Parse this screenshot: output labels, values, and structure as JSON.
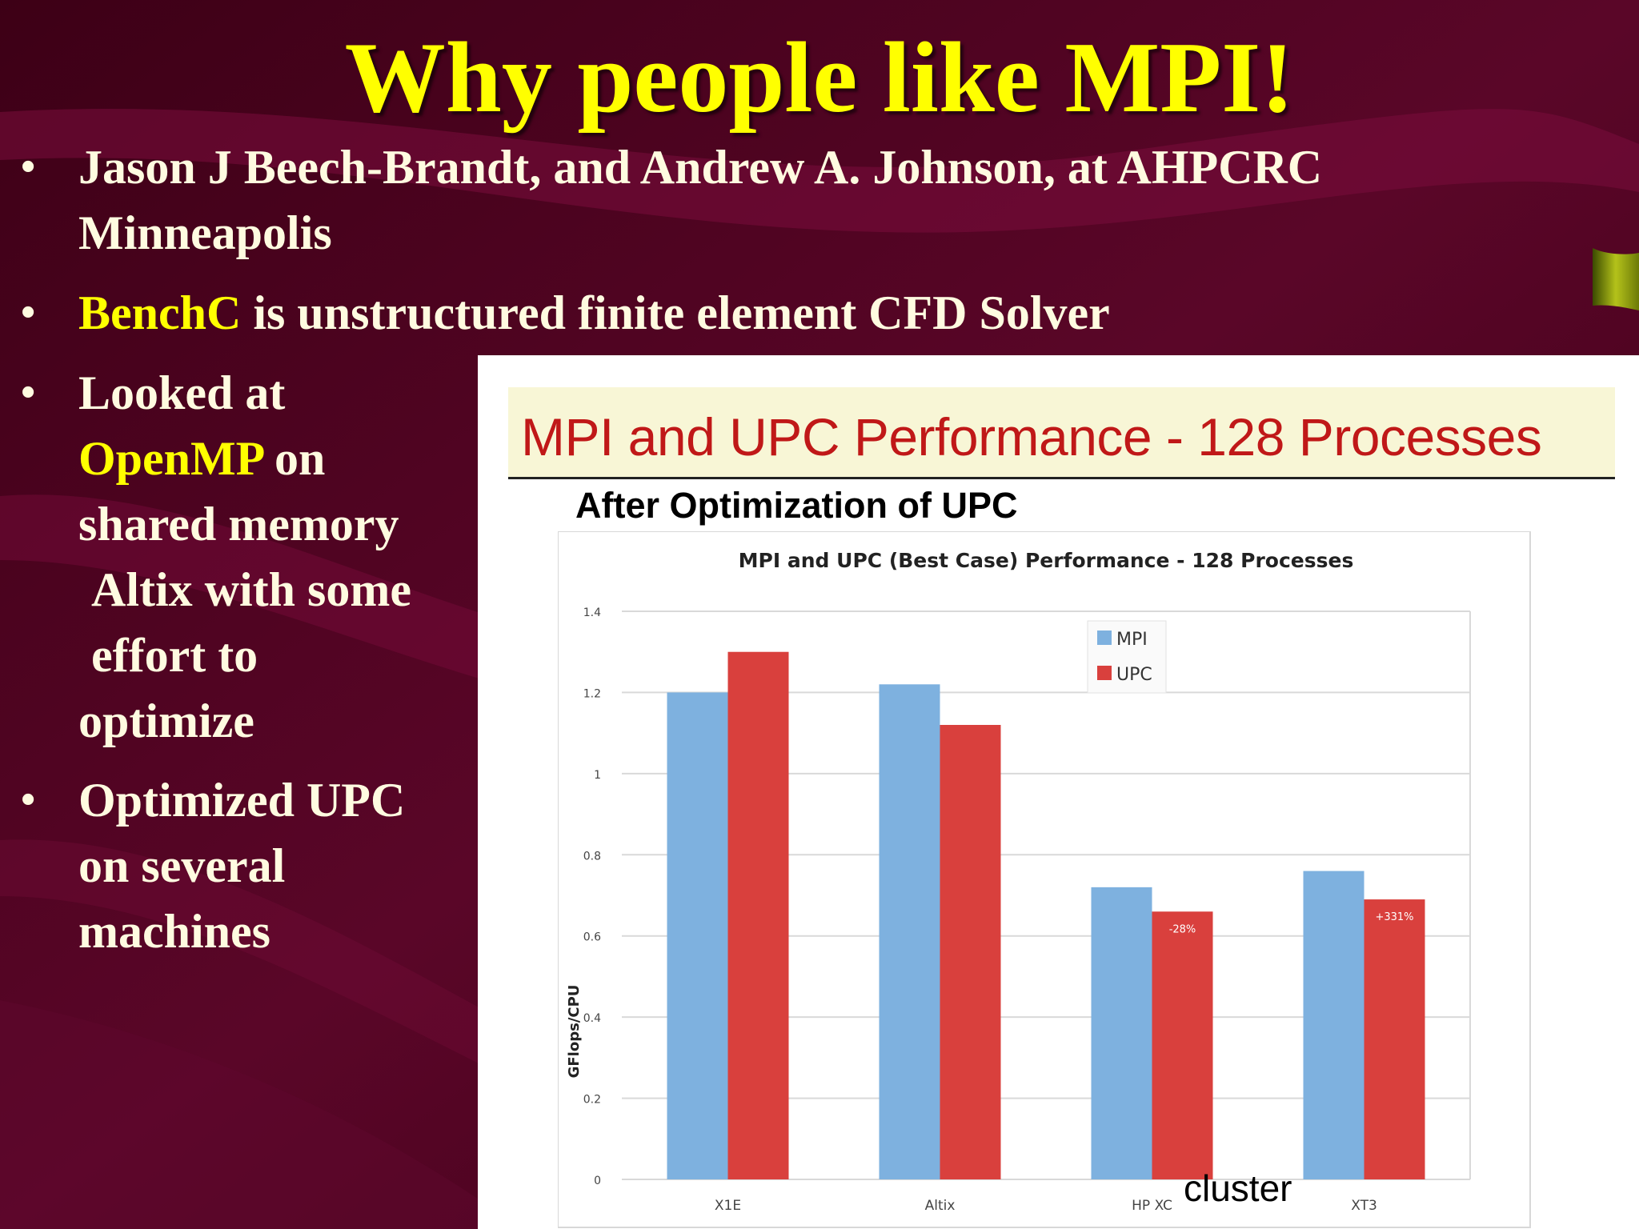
{
  "slide": {
    "title": "Why people like MPI!",
    "bullets": [
      {
        "lines": [
          "Jason J Beech-Brandt, and Andrew A. Johnson, at AHPCRC",
          "Minneapolis"
        ]
      },
      {
        "highlight": "BenchC",
        "rest": " is unstructured finite element CFD Solver"
      },
      {
        "l1": "Looked at",
        "l2_hl": "OpenMP",
        "l2_rest": " on",
        "l3": "shared memory",
        "l4": "Altix with some",
        "l5": "effort to",
        "l6": "optimize"
      },
      {
        "lines": [
          "Optimized UPC",
          "on several",
          "machines"
        ]
      }
    ]
  },
  "figure": {
    "banner": "MPI and UPC Performance - 128 Processes",
    "subtitle": "After Optimization of UPC",
    "annotation": "cluster"
  },
  "colors": {
    "title": "#ffff00",
    "body_text": "#fffbe0",
    "mpi": "#7eb1df",
    "upc": "#d9403d",
    "banner_text": "#c01818"
  },
  "chart_data": {
    "type": "bar",
    "title": "MPI and UPC (Best Case) Performance - 128 Processes",
    "ylabel": "GFlops/CPU",
    "xlabel": "",
    "categories": [
      "X1E",
      "Altix",
      "HP XC",
      "XT3"
    ],
    "series": [
      {
        "name": "MPI",
        "values": [
          1.2,
          1.22,
          0.72,
          0.76
        ]
      },
      {
        "name": "UPC",
        "values": [
          1.3,
          1.12,
          0.66,
          0.69
        ]
      }
    ],
    "bar_labels": {
      "UPC": [
        "",
        "",
        "-28%",
        "+331%"
      ]
    },
    "ylim": [
      0,
      1.4
    ],
    "yticks": [
      "0",
      "0.2",
      "0.4",
      "0.6",
      "0.8",
      "1",
      "1.2",
      "1.4"
    ],
    "grid": true,
    "legend": "top-right"
  }
}
